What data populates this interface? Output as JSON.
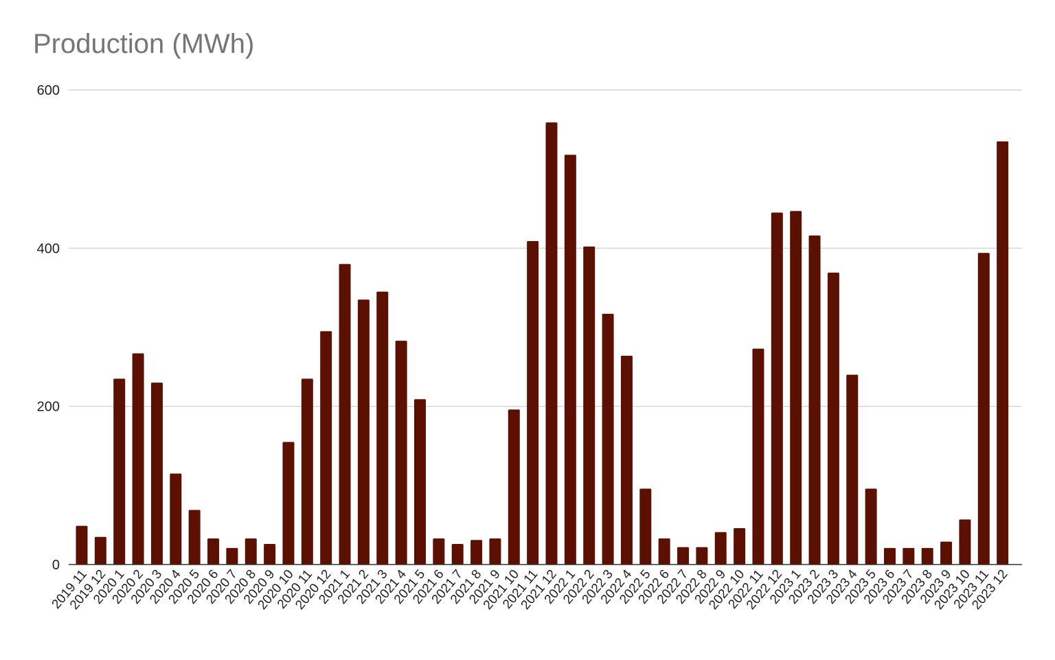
{
  "chart_data": {
    "type": "bar",
    "title": "Production (MWh)",
    "xlabel": "",
    "ylabel": "",
    "ylim": [
      0,
      600
    ],
    "yticks": [
      "0",
      "200",
      "400",
      "600"
    ],
    "grid": true,
    "legend": "none",
    "bar_color": "#5c1001",
    "categories": [
      "2019 11",
      "2019 12",
      "2020 1",
      "2020 2",
      "2020 3",
      "2020 4",
      "2020 5",
      "2020 6",
      "2020 7",
      "2020 8",
      "2020 9",
      "2020 10",
      "2020 11",
      "2020 12",
      "2021 1",
      "2021 2",
      "2021 3",
      "2021 4",
      "2021 5",
      "2021 6",
      "2021 7",
      "2021 8",
      "2021 9",
      "2021 10",
      "2021 11",
      "2021 12",
      "2022 1",
      "2022 2",
      "2022 3",
      "2022 4",
      "2022 5",
      "2022 6",
      "2022 7",
      "2022 8",
      "2022 9",
      "2022 10",
      "2022 11",
      "2022 12",
      "2023 1",
      "2023 2",
      "2023 3",
      "2023 4",
      "2023 5",
      "2023 6",
      "2023 7",
      "2023 8",
      "2023 9",
      "2023 10",
      "2023 11",
      "2023 12"
    ],
    "values": [
      49,
      35,
      235,
      267,
      230,
      115,
      69,
      33,
      21,
      33,
      26,
      155,
      235,
      295,
      380,
      335,
      345,
      283,
      209,
      33,
      26,
      31,
      33,
      196,
      409,
      559,
      518,
      402,
      317,
      264,
      96,
      33,
      22,
      22,
      41,
      46,
      273,
      445,
      447,
      416,
      369,
      240,
      96,
      21,
      21,
      21,
      29,
      57,
      394,
      535
    ]
  }
}
